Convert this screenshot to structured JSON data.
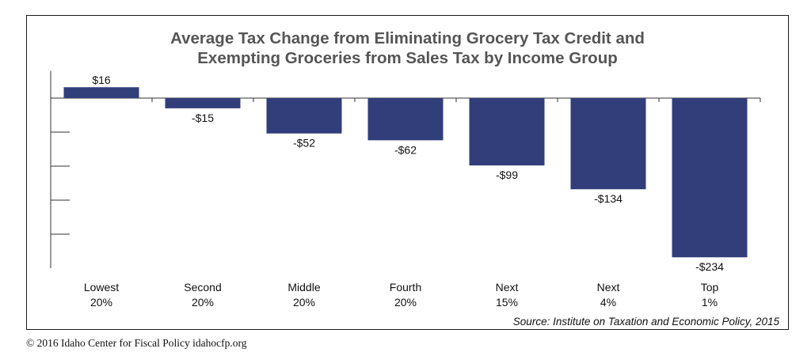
{
  "colors": {
    "bar": "#323e7a",
    "axis": "#333333",
    "title": "#555555",
    "text": "#111111"
  },
  "footer": {
    "source": "Source: Institute on Taxation and Economic Policy, 2015",
    "copyright": "© 2016 Idaho Center for Fiscal Policy idahocfp.org"
  },
  "chart_data": {
    "type": "bar",
    "title": "Average Tax Change from Eliminating Grocery Tax Credit and Exempting Groceries from Sales Tax by Income Group",
    "title_lines": [
      "Average Tax Change from Eliminating Grocery Tax Credit and",
      "Exempting Groceries from Sales Tax by Income Group"
    ],
    "categories": [
      [
        "Lowest",
        "20%"
      ],
      [
        "Second",
        "20%"
      ],
      [
        "Middle",
        "20%"
      ],
      [
        "Fourth",
        "20%"
      ],
      [
        "Next",
        "15%"
      ],
      [
        "Next",
        "4%"
      ],
      [
        "Top",
        "1%"
      ]
    ],
    "values": [
      16,
      -15,
      -52,
      -62,
      -99,
      -134,
      -234
    ],
    "data_labels": [
      "$16",
      "-$15",
      "-$52",
      "-$62",
      "-$99",
      "-$134",
      "-$234"
    ],
    "ylim": [
      -250,
      40
    ],
    "y_ticks": [
      -200,
      -150,
      -100,
      -50,
      0
    ],
    "y_tick_labels_shown": false,
    "grid": false,
    "legend": "none",
    "xlabel": "",
    "ylabel": ""
  }
}
